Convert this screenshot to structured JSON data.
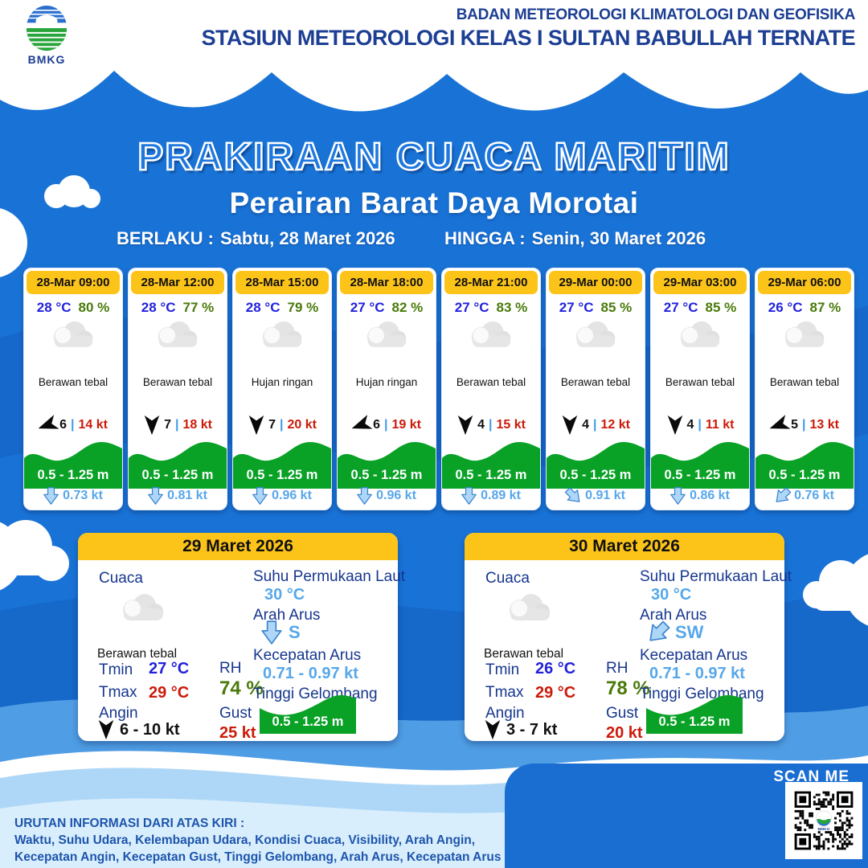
{
  "header": {
    "agency_line1": "BADAN METEOROLOGI KLIMATOLOGI DAN GEOFISIKA",
    "agency_line2": "STASIUN METEOROLOGI KELAS I SULTAN BABULLAH TERNATE",
    "logo_text": "BMKG"
  },
  "title": "PRAKIRAAN CUACA MARITIM",
  "subtitle": "Perairan Barat Daya Morotai",
  "validity": {
    "berlaku_label": "BERLAKU :",
    "berlaku_value": "Sabtu, 28 Maret 2026",
    "hingga_label": "HINGGA :",
    "hingga_value": "Senin, 30 Maret 2026"
  },
  "labels": {
    "divider": "|",
    "cuaca": "Cuaca",
    "tmin": "Tmin",
    "tmax": "Tmax",
    "angin": "Angin",
    "rh": "RH",
    "gust": "Gust",
    "sst": "Suhu Permukaan Laut",
    "arah_arus": "Arah Arus",
    "kecepatan_arus": "Kecepatan Arus",
    "tinggi_gelombang": "Tinggi Gelombang"
  },
  "forecasts": [
    {
      "time": "28-Mar 09:00",
      "temp": "28 °C",
      "rh": "80 %",
      "condition": "Berawan tebal",
      "icon": "cloud",
      "wind_dir_deg": 250,
      "visibility": "6",
      "wind_speed": "14 kt",
      "wave_height": "0.5 - 1.25 m",
      "current_dir_deg": 0,
      "current_speed": "0.73 kt"
    },
    {
      "time": "28-Mar 12:00",
      "temp": "28 °C",
      "rh": "77 %",
      "condition": "Berawan tebal",
      "icon": "cloud",
      "wind_dir_deg": 180,
      "visibility": "7",
      "wind_speed": "18 kt",
      "wave_height": "0.5 - 1.25 m",
      "current_dir_deg": 0,
      "current_speed": "0.81 kt"
    },
    {
      "time": "28-Mar 15:00",
      "temp": "28 °C",
      "rh": "79 %",
      "condition": "Hujan ringan",
      "icon": "rain",
      "wind_dir_deg": 180,
      "visibility": "7",
      "wind_speed": "20 kt",
      "wave_height": "0.5 - 1.25 m",
      "current_dir_deg": 0,
      "current_speed": "0.96 kt"
    },
    {
      "time": "28-Mar 18:00",
      "temp": "27 °C",
      "rh": "82 %",
      "condition": "Hujan ringan",
      "icon": "rain",
      "wind_dir_deg": 250,
      "visibility": "6",
      "wind_speed": "19 kt",
      "wave_height": "0.5 - 1.25 m",
      "current_dir_deg": 0,
      "current_speed": "0.96 kt"
    },
    {
      "time": "28-Mar 21:00",
      "temp": "27 °C",
      "rh": "83 %",
      "condition": "Berawan tebal",
      "icon": "cloud",
      "wind_dir_deg": 180,
      "visibility": "4",
      "wind_speed": "15 kt",
      "wave_height": "0.5 - 1.25 m",
      "current_dir_deg": 0,
      "current_speed": "0.89 kt"
    },
    {
      "time": "29-Mar 00:00",
      "temp": "27 °C",
      "rh": "85 %",
      "condition": "Berawan tebal",
      "icon": "cloud",
      "wind_dir_deg": 180,
      "visibility": "4",
      "wind_speed": "12 kt",
      "wave_height": "0.5 - 1.25 m",
      "current_dir_deg": -45,
      "current_speed": "0.91 kt"
    },
    {
      "time": "29-Mar 03:00",
      "temp": "27 °C",
      "rh": "85 %",
      "condition": "Berawan tebal",
      "icon": "cloud",
      "wind_dir_deg": 180,
      "visibility": "4",
      "wind_speed": "11 kt",
      "wave_height": "0.5 - 1.25 m",
      "current_dir_deg": 0,
      "current_speed": "0.86 kt"
    },
    {
      "time": "29-Mar 06:00",
      "temp": "26 °C",
      "rh": "87 %",
      "condition": "Berawan tebal",
      "icon": "cloud",
      "wind_dir_deg": 250,
      "visibility": "5",
      "wind_speed": "13 kt",
      "wave_height": "0.5 - 1.25 m",
      "current_dir_deg": 45,
      "current_speed": "0.76 kt"
    }
  ],
  "daily": [
    {
      "date": "29 Maret 2026",
      "condition": "Berawan tebal",
      "icon": "cloud",
      "tmin": "27 °C",
      "tmax": "29 °C",
      "rh": "74 %",
      "gust": "25 kt",
      "wind_dir_deg": 180,
      "wind_range": "6 - 10 kt",
      "sst": "30 °C",
      "current_dir": "S",
      "current_dir_deg": 0,
      "current_range": "0.71 - 0.97 kt",
      "wave_height": "0.5 - 1.25 m"
    },
    {
      "date": "30 Maret 2026",
      "condition": "Berawan tebal",
      "icon": "cloud",
      "tmin": "26 °C",
      "tmax": "29 °C",
      "rh": "78 %",
      "gust": "20 kt",
      "wind_dir_deg": 180,
      "wind_range": "3 - 7 kt",
      "sst": "30 °C",
      "current_dir": "SW",
      "current_dir_deg": 45,
      "current_range": "0.71 - 0.97 kt",
      "wave_height": "0.5 - 1.25 m"
    }
  ],
  "footer": {
    "legend_title": "URUTAN INFORMASI DARI ATAS KIRI :",
    "legend_line1": "Waktu, Suhu Udara, Kelembapan Udara, Kondisi Cuaca, Visibility, Arah Angin,",
    "legend_line2": "Kecepatan Angin, Kecepatan Gust, Tinggi Gelombang, Arah Arus, Kecepatan Arus",
    "scan_label": "SCAN ME"
  },
  "colors": {
    "background_blue": "#1973d6",
    "navy": "#1c3e93",
    "header_yellow": "#fcc419",
    "temp_blue": "#2222dd",
    "humidity_green": "#4a7a0a",
    "speed_red": "#cc1a0a",
    "wave_green": "#09a226",
    "current_light_blue": "#57a7ea"
  }
}
